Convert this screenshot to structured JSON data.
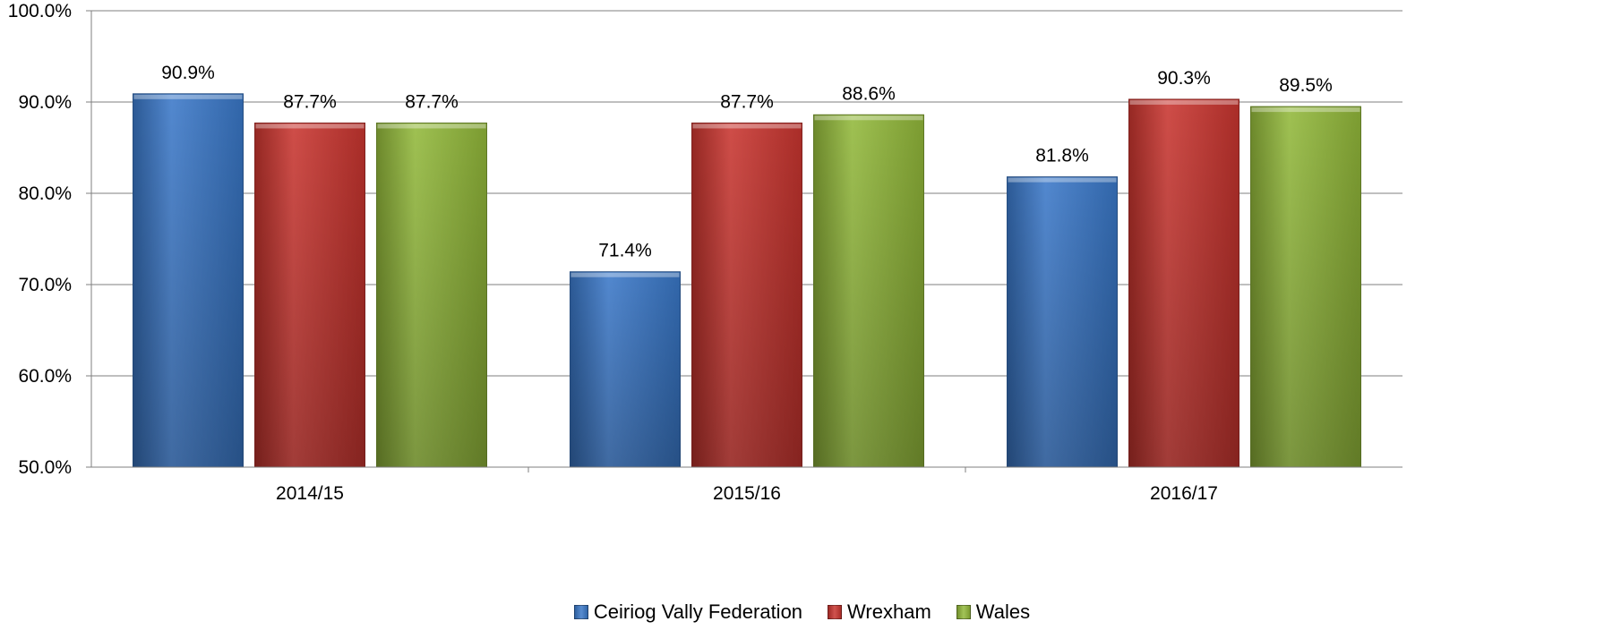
{
  "chart_data": {
    "type": "bar",
    "title": "",
    "xlabel": "",
    "ylabel": "",
    "categories": [
      "2014/15",
      "2015/16",
      "2016/17"
    ],
    "series": [
      {
        "name": "Ceiriog Vally Federation",
        "values": [
          90.9,
          71.4,
          81.8
        ],
        "labels": [
          "90.9%",
          "71.4%",
          "81.8%"
        ],
        "color": "#3A78C8"
      },
      {
        "name": "Wrexham",
        "values": [
          87.7,
          87.7,
          90.3
        ],
        "labels": [
          "87.7%",
          "87.7%",
          "90.3%"
        ],
        "color": "#C8352F"
      },
      {
        "name": "Wales",
        "values": [
          87.7,
          88.6,
          89.5
        ],
        "labels": [
          "87.7%",
          "88.6%",
          "89.5%"
        ],
        "color": "#92B83A"
      }
    ],
    "ylim": [
      50,
      100
    ],
    "yticks": [
      "50.0%",
      "60.0%",
      "70.0%",
      "80.0%",
      "90.0%",
      "100.0%"
    ],
    "grid": true,
    "legend_position": "bottom"
  }
}
